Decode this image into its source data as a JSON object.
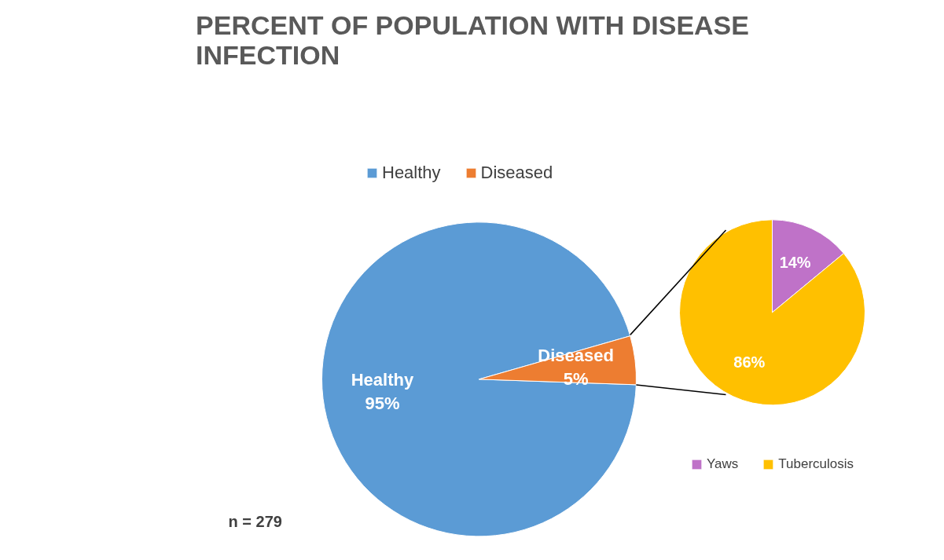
{
  "chart_data": [
    {
      "type": "pie",
      "title": "PERCENT OF POPULATION WITH DISEASE\nINFECTION",
      "categories": [
        "Healthy",
        "Diseased"
      ],
      "values": [
        95,
        5
      ],
      "colors": [
        "#5b9bd5",
        "#ed7d31"
      ],
      "value_labels": [
        "95%",
        "5%"
      ],
      "legend": "top",
      "annotations": [
        "n = 279"
      ]
    },
    {
      "type": "pie",
      "categories": [
        "Yaws",
        "Tuberculosis"
      ],
      "values": [
        14,
        86
      ],
      "colors": [
        "#bf72c8",
        "#ffc000"
      ],
      "value_labels": [
        "14%",
        "86%"
      ],
      "legend": "bottom right"
    }
  ]
}
